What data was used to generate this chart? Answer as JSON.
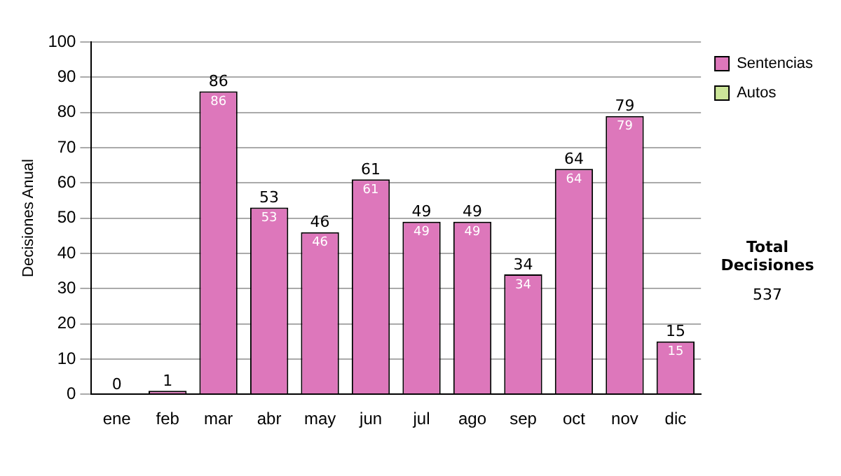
{
  "chart_data": {
    "type": "bar",
    "stacked": true,
    "ylabel": "Decisiones Anual",
    "categories": [
      "ene",
      "feb",
      "mar",
      "abr",
      "may",
      "jun",
      "jul",
      "ago",
      "sep",
      "oct",
      "nov",
      "dic"
    ],
    "series": [
      {
        "name": "Sentencias",
        "color": "#dd77bb",
        "values": [
          0,
          1,
          86,
          53,
          46,
          61,
          49,
          49,
          34,
          64,
          79,
          15
        ],
        "value_labels": [
          null,
          null,
          "86",
          "53",
          "46",
          "61",
          "49",
          "49",
          "34",
          "64",
          "79",
          "15"
        ]
      },
      {
        "name": "Autos",
        "color": "#cce699",
        "values": [
          0,
          0,
          0,
          0,
          0,
          0,
          0,
          0,
          0,
          0,
          0,
          0
        ]
      }
    ],
    "totals": [
      "0",
      "1",
      "86",
      "53",
      "46",
      "61",
      "49",
      "49",
      "34",
      "64",
      "79",
      "15"
    ],
    "ylim": [
      0,
      100
    ],
    "yticks": [
      0,
      10,
      20,
      30,
      40,
      50,
      60,
      70,
      80,
      90,
      100
    ],
    "grid": "y",
    "legend": "right",
    "annotations": [
      "Total Decisiones",
      "537"
    ]
  }
}
